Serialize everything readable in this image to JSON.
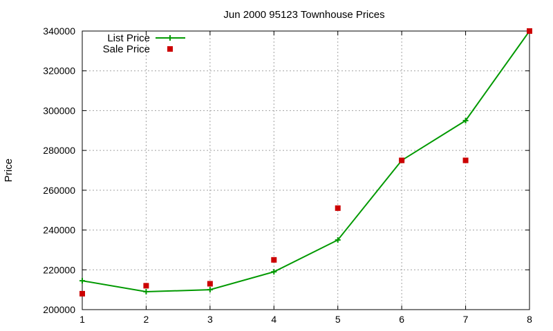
{
  "chart_data": {
    "type": "line",
    "title": "Jun 2000 95123 Townhouse Prices",
    "xlabel": "",
    "ylabel": "Price",
    "xlim": [
      1,
      8
    ],
    "ylim": [
      200000,
      340000
    ],
    "x_ticks": [
      1,
      2,
      3,
      4,
      5,
      6,
      7,
      8
    ],
    "y_ticks": [
      200000,
      220000,
      240000,
      260000,
      280000,
      300000,
      320000,
      340000
    ],
    "grid": true,
    "legend_position": "top-left",
    "x": [
      1,
      2,
      3,
      4,
      5,
      6,
      7,
      8
    ],
    "series": [
      {
        "name": "List Price",
        "style": "linespoints",
        "marker": "plus",
        "color": "#009900",
        "values": [
          214500,
          209000,
          210000,
          219000,
          235000,
          275000,
          295000,
          340000
        ]
      },
      {
        "name": "Sale Price",
        "style": "points",
        "marker": "square",
        "color": "#cc0000",
        "values": [
          208000,
          212000,
          213000,
          225000,
          251000,
          275000,
          275000,
          340000
        ]
      }
    ]
  }
}
